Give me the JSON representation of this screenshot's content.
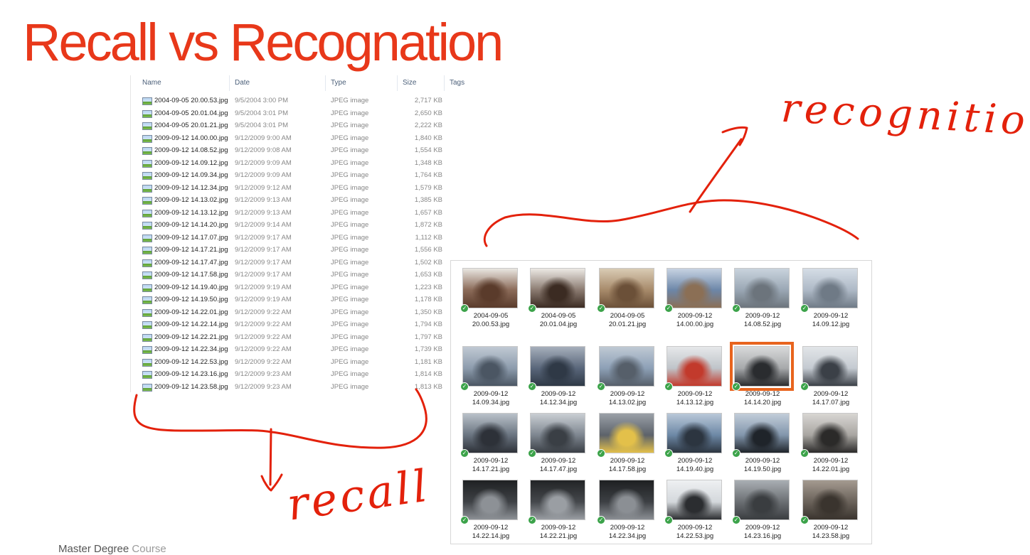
{
  "slide": {
    "title": "Recall vs Recognation",
    "footer_main": "Master Degree",
    "footer_light": "Course"
  },
  "details": {
    "columns": {
      "name": "Name",
      "date": "Date",
      "type": "Type",
      "size": "Size",
      "tags": "Tags"
    },
    "rows": [
      {
        "name": "2004-09-05 20.00.53.jpg",
        "date": "9/5/2004 3:00 PM",
        "type": "JPEG image",
        "size": "2,717 KB"
      },
      {
        "name": "2004-09-05 20.01.04.jpg",
        "date": "9/5/2004 3:01 PM",
        "type": "JPEG image",
        "size": "2,650 KB"
      },
      {
        "name": "2004-09-05 20.01.21.jpg",
        "date": "9/5/2004 3:01 PM",
        "type": "JPEG image",
        "size": "2,222 KB"
      },
      {
        "name": "2009-09-12 14.00.00.jpg",
        "date": "9/12/2009 9:00 AM",
        "type": "JPEG image",
        "size": "1,840 KB"
      },
      {
        "name": "2009-09-12 14.08.52.jpg",
        "date": "9/12/2009 9:08 AM",
        "type": "JPEG image",
        "size": "1,554 KB"
      },
      {
        "name": "2009-09-12 14.09.12.jpg",
        "date": "9/12/2009 9:09 AM",
        "type": "JPEG image",
        "size": "1,348 KB"
      },
      {
        "name": "2009-09-12 14.09.34.jpg",
        "date": "9/12/2009 9:09 AM",
        "type": "JPEG image",
        "size": "1,764 KB"
      },
      {
        "name": "2009-09-12 14.12.34.jpg",
        "date": "9/12/2009 9:12 AM",
        "type": "JPEG image",
        "size": "1,579 KB"
      },
      {
        "name": "2009-09-12 14.13.02.jpg",
        "date": "9/12/2009 9:13 AM",
        "type": "JPEG image",
        "size": "1,385 KB"
      },
      {
        "name": "2009-09-12 14.13.12.jpg",
        "date": "9/12/2009 9:13 AM",
        "type": "JPEG image",
        "size": "1,657 KB"
      },
      {
        "name": "2009-09-12 14.14.20.jpg",
        "date": "9/12/2009 9:14 AM",
        "type": "JPEG image",
        "size": "1,872 KB"
      },
      {
        "name": "2009-09-12 14.17.07.jpg",
        "date": "9/12/2009 9:17 AM",
        "type": "JPEG image",
        "size": "1,112 KB"
      },
      {
        "name": "2009-09-12 14.17.21.jpg",
        "date": "9/12/2009 9:17 AM",
        "type": "JPEG image",
        "size": "1,556 KB"
      },
      {
        "name": "2009-09-12 14.17.47.jpg",
        "date": "9/12/2009 9:17 AM",
        "type": "JPEG image",
        "size": "1,502 KB"
      },
      {
        "name": "2009-09-12 14.17.58.jpg",
        "date": "9/12/2009 9:17 AM",
        "type": "JPEG image",
        "size": "1,653 KB"
      },
      {
        "name": "2009-09-12 14.19.40.jpg",
        "date": "9/12/2009 9:19 AM",
        "type": "JPEG image",
        "size": "1,223 KB"
      },
      {
        "name": "2009-09-12 14.19.50.jpg",
        "date": "9/12/2009 9:19 AM",
        "type": "JPEG image",
        "size": "1,178 KB"
      },
      {
        "name": "2009-09-12 14.22.01.jpg",
        "date": "9/12/2009 9:22 AM",
        "type": "JPEG image",
        "size": "1,350 KB"
      },
      {
        "name": "2009-09-12 14.22.14.jpg",
        "date": "9/12/2009 9:22 AM",
        "type": "JPEG image",
        "size": "1,794 KB"
      },
      {
        "name": "2009-09-12 14.22.21.jpg",
        "date": "9/12/2009 9:22 AM",
        "type": "JPEG image",
        "size": "1,797 KB"
      },
      {
        "name": "2009-09-12 14.22.34.jpg",
        "date": "9/12/2009 9:22 AM",
        "type": "JPEG image",
        "size": "1,739 KB"
      },
      {
        "name": "2009-09-12 14.22.53.jpg",
        "date": "9/12/2009 9:22 AM",
        "type": "JPEG image",
        "size": "1,181 KB"
      },
      {
        "name": "2009-09-12 14.23.16.jpg",
        "date": "9/12/2009 9:23 AM",
        "type": "JPEG image",
        "size": "1,814 KB"
      },
      {
        "name": "2009-09-12 14.23.58.jpg",
        "date": "9/12/2009 9:23 AM",
        "type": "JPEG image",
        "size": "1,813 KB"
      }
    ]
  },
  "thumbnails": {
    "items": [
      {
        "line1": "2004-09-05",
        "line2": "20.00.53.jpg",
        "palette": [
          "#8a6a58",
          "#5a3b2b",
          "#e9e6e1"
        ]
      },
      {
        "line1": "2004-09-05",
        "line2": "20.01.04.jpg",
        "palette": [
          "#8a7a70",
          "#3b2b22",
          "#ece9e4"
        ]
      },
      {
        "line1": "2004-09-05",
        "line2": "20.01.21.jpg",
        "palette": [
          "#a78a6a",
          "#6b5038",
          "#d9cbb4"
        ]
      },
      {
        "line1": "2009-09-12",
        "line2": "14.00.00.jpg",
        "palette": [
          "#6c86a8",
          "#8b6f55",
          "#c7d3e2"
        ]
      },
      {
        "line1": "2009-09-12",
        "line2": "14.08.52.jpg",
        "palette": [
          "#9aa7b4",
          "#6c747c",
          "#c9d3dd"
        ]
      },
      {
        "line1": "2009-09-12",
        "line2": "14.09.12.jpg",
        "palette": [
          "#aeb9c6",
          "#6f7a86",
          "#d5dde6"
        ]
      },
      {
        "line1": "2009-09-12",
        "line2": "14.09.34.jpg",
        "palette": [
          "#8d9cad",
          "#4b5663",
          "#c0c9d3"
        ]
      },
      {
        "line1": "2009-09-12",
        "line2": "14.12.34.jpg",
        "palette": [
          "#59667a",
          "#2f3946",
          "#a6afbb"
        ]
      },
      {
        "line1": "2009-09-12",
        "line2": "14.13.02.jpg",
        "palette": [
          "#8da0b6",
          "#565f6a",
          "#bfc9d4"
        ]
      },
      {
        "line1": "2009-09-12",
        "line2": "14.13.12.jpg",
        "palette": [
          "#bfc4c9",
          "#c23a2c",
          "#e6e8ea"
        ]
      },
      {
        "line1": "2009-09-12",
        "line2": "14.14.20.jpg",
        "palette": [
          "#a7a9ab",
          "#2a2c2f",
          "#d8d9da"
        ]
      },
      {
        "line1": "2009-09-12",
        "line2": "14.17.07.jpg",
        "palette": [
          "#c4cad1",
          "#3b4047",
          "#e2e5e8"
        ]
      },
      {
        "line1": "2009-09-12",
        "line2": "14.17.21.jpg",
        "palette": [
          "#6a7480",
          "#2d3138",
          "#b9c1c9"
        ]
      },
      {
        "line1": "2009-09-12",
        "line2": "14.17.47.jpg",
        "palette": [
          "#7e8690",
          "#3a3f45",
          "#c9ced3"
        ]
      },
      {
        "line1": "2009-09-12",
        "line2": "14.17.58.jpg",
        "palette": [
          "#5c626a",
          "#e3c04a",
          "#9aa0a7"
        ]
      },
      {
        "line1": "2009-09-12",
        "line2": "14.19.40.jpg",
        "palette": [
          "#6d88a6",
          "#2c3540",
          "#b9c8d8"
        ]
      },
      {
        "line1": "2009-09-12",
        "line2": "14.19.50.jpg",
        "palette": [
          "#8296ac",
          "#1f242a",
          "#c2cdd9"
        ]
      },
      {
        "line1": "2009-09-12",
        "line2": "14.22.01.jpg",
        "palette": [
          "#a9a6a2",
          "#2b2a29",
          "#d8d6d3"
        ]
      },
      {
        "line1": "2009-09-12",
        "line2": "14.22.14.jpg",
        "palette": [
          "#3f4246",
          "#8d9196",
          "#1f2123"
        ]
      },
      {
        "line1": "2009-09-12",
        "line2": "14.22.21.jpg",
        "palette": [
          "#45484c",
          "#9a9ea3",
          "#222426"
        ]
      },
      {
        "line1": "2009-09-12",
        "line2": "14.22.34.jpg",
        "palette": [
          "#3d4044",
          "#8b8f94",
          "#1e2022"
        ]
      },
      {
        "line1": "2009-09-12",
        "line2": "14.22.53.jpg",
        "palette": [
          "#d4d8dc",
          "#2b2d30",
          "#eef0f2"
        ]
      },
      {
        "line1": "2009-09-12",
        "line2": "14.23.16.jpg",
        "palette": [
          "#6b6f73",
          "#3a3d40",
          "#a9aeb3"
        ]
      },
      {
        "line1": "2009-09-12",
        "line2": "14.23.58.jpg",
        "palette": [
          "#6a625a",
          "#3a342e",
          "#a49a90"
        ]
      }
    ],
    "selected_index": 10,
    "check_glyph": "✓"
  },
  "annotations": {
    "recognition": "recognition",
    "recall": "recall",
    "ink_color": "#e3210b"
  },
  "colors": {
    "title": "#e8381a",
    "selection": "#e8641e",
    "check": "#3ca34a"
  }
}
